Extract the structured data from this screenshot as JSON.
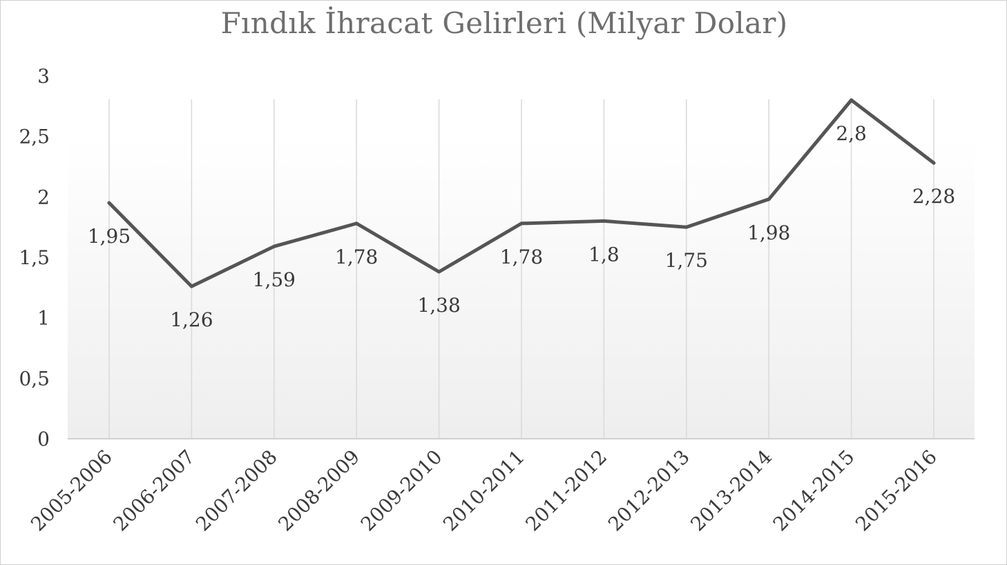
{
  "chart_data": {
    "type": "line",
    "title": "Fındık İhracat Gelirleri (Milyar Dolar)",
    "categories": [
      "2005-2006",
      "2006-2007",
      "2007-2008",
      "2008-2009",
      "2009-2010",
      "2010-2011",
      "2011-2012",
      "2012-2013",
      "2013-2014",
      "2014-2015",
      "2015-2016"
    ],
    "values": [
      1.95,
      1.26,
      1.59,
      1.78,
      1.38,
      1.78,
      1.8,
      1.75,
      1.98,
      2.8,
      2.28
    ],
    "value_labels": [
      "1,95",
      "1,26",
      "1,59",
      "1,78",
      "1,38",
      "1,78",
      "1,8",
      "1,75",
      "1,98",
      "2,8",
      "2,28"
    ],
    "y_ticks": [
      "0",
      "0,5",
      "1",
      "1,5",
      "2",
      "2,5",
      "3"
    ],
    "ylim": [
      0,
      3
    ],
    "xlabel": "",
    "ylabel": "",
    "grid": "vertical",
    "legend": "none",
    "line_color": "#555555",
    "gridline_color": "#d9d9d9"
  }
}
